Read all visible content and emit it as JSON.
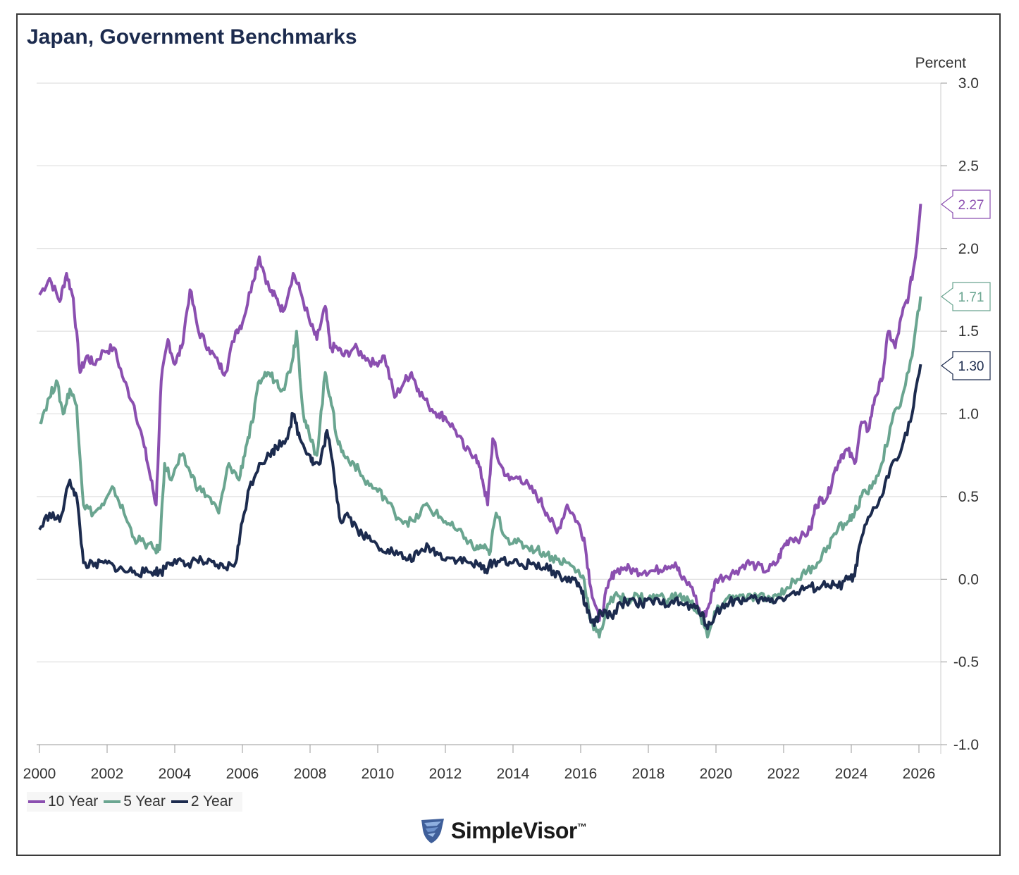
{
  "chart_data": {
    "type": "line",
    "title": "Japan, Government Benchmarks",
    "ylabel": "Percent",
    "xlim": [
      2000,
      2026.3
    ],
    "ylim": [
      -1.0,
      3.0
    ],
    "x_ticks": [
      "2000",
      "2002",
      "2004",
      "2006",
      "2008",
      "2010",
      "2012",
      "2014",
      "2016",
      "2018",
      "2020",
      "2022",
      "2024",
      "2026"
    ],
    "y_ticks": [
      "3.0",
      "2.5",
      "2.0",
      "1.5",
      "1.0",
      "0.5",
      "0.0",
      "-0.5",
      "-1.0"
    ],
    "grid": true,
    "y_axis_side": "right",
    "legend_position": "bottom-left",
    "series": [
      {
        "name": "10 Year",
        "color": "#8b4fb0",
        "last_value": "2.27",
        "x": [
          2000.0,
          2000.3,
          2000.6,
          2000.8,
          2001.0,
          2001.2,
          2001.4,
          2001.6,
          2001.9,
          2002.2,
          2002.5,
          2002.8,
          2003.1,
          2003.3,
          2003.45,
          2003.6,
          2003.8,
          2004.0,
          2004.2,
          2004.45,
          2004.7,
          2005.0,
          2005.3,
          2005.5,
          2005.8,
          2006.0,
          2006.3,
          2006.5,
          2006.8,
          2007.0,
          2007.2,
          2007.5,
          2007.7,
          2008.0,
          2008.2,
          2008.45,
          2008.6,
          2008.8,
          2009.0,
          2009.3,
          2009.6,
          2009.9,
          2010.2,
          2010.5,
          2010.8,
          2011.0,
          2011.2,
          2011.5,
          2011.8,
          2012.0,
          2012.3,
          2012.6,
          2012.9,
          2013.1,
          2013.25,
          2013.4,
          2013.6,
          2013.9,
          2014.2,
          2014.5,
          2014.8,
          2015.0,
          2015.3,
          2015.6,
          2015.9,
          2016.1,
          2016.3,
          2016.55,
          2016.8,
          2017.0,
          2017.3,
          2017.6,
          2017.9,
          2018.2,
          2018.5,
          2018.8,
          2019.0,
          2019.3,
          2019.6,
          2019.8,
          2020.0,
          2020.3,
          2020.6,
          2020.9,
          2021.2,
          2021.5,
          2021.8,
          2022.0,
          2022.2,
          2022.5,
          2022.8,
          2022.95,
          2023.1,
          2023.3,
          2023.5,
          2023.7,
          2023.9,
          2024.1,
          2024.3,
          2024.5,
          2024.7,
          2024.9,
          2025.1,
          2025.3,
          2025.5,
          2025.7,
          2025.9,
          2026.05
        ],
        "values": [
          1.72,
          1.82,
          1.68,
          1.85,
          1.7,
          1.25,
          1.35,
          1.3,
          1.38,
          1.4,
          1.2,
          1.05,
          0.8,
          0.6,
          0.45,
          1.2,
          1.45,
          1.3,
          1.4,
          1.75,
          1.5,
          1.4,
          1.3,
          1.25,
          1.5,
          1.55,
          1.8,
          1.95,
          1.75,
          1.7,
          1.62,
          1.85,
          1.75,
          1.55,
          1.45,
          1.65,
          1.4,
          1.4,
          1.35,
          1.4,
          1.35,
          1.3,
          1.35,
          1.1,
          1.2,
          1.25,
          1.15,
          1.05,
          1.0,
          0.98,
          0.9,
          0.78,
          0.75,
          0.6,
          0.45,
          0.85,
          0.7,
          0.6,
          0.62,
          0.55,
          0.48,
          0.4,
          0.28,
          0.45,
          0.35,
          0.25,
          -0.05,
          -0.25,
          -0.05,
          0.05,
          0.07,
          0.05,
          0.05,
          0.05,
          0.08,
          0.1,
          0.0,
          -0.05,
          -0.25,
          -0.15,
          0.0,
          0.02,
          0.05,
          0.1,
          0.08,
          0.05,
          0.1,
          0.2,
          0.25,
          0.25,
          0.3,
          0.45,
          0.48,
          0.5,
          0.65,
          0.75,
          0.78,
          0.7,
          0.95,
          0.9,
          1.1,
          1.2,
          1.5,
          1.4,
          1.6,
          1.72,
          1.95,
          2.27
        ]
      },
      {
        "name": "5 Year",
        "color": "#6aa590",
        "last_value": "1.71",
        "x": [
          2000.0,
          2000.3,
          2000.5,
          2000.7,
          2000.9,
          2001.1,
          2001.3,
          2001.6,
          2001.9,
          2002.2,
          2002.5,
          2002.8,
          2003.1,
          2003.4,
          2003.55,
          2003.7,
          2003.9,
          2004.2,
          2004.45,
          2004.7,
          2005.0,
          2005.3,
          2005.6,
          2005.9,
          2006.1,
          2006.3,
          2006.5,
          2006.75,
          2007.0,
          2007.2,
          2007.45,
          2007.6,
          2007.8,
          2008.0,
          2008.2,
          2008.45,
          2008.6,
          2008.8,
          2009.0,
          2009.3,
          2009.6,
          2009.9,
          2010.2,
          2010.5,
          2010.8,
          2011.1,
          2011.4,
          2011.7,
          2012.0,
          2012.3,
          2012.6,
          2012.9,
          2013.1,
          2013.3,
          2013.5,
          2013.8,
          2014.1,
          2014.4,
          2014.7,
          2015.0,
          2015.3,
          2015.6,
          2015.9,
          2016.1,
          2016.3,
          2016.55,
          2016.8,
          2017.1,
          2017.4,
          2017.7,
          2018.0,
          2018.3,
          2018.6,
          2018.9,
          2019.2,
          2019.5,
          2019.75,
          2020.0,
          2020.3,
          2020.6,
          2020.9,
          2021.2,
          2021.5,
          2021.8,
          2022.1,
          2022.4,
          2022.7,
          2023.0,
          2023.3,
          2023.6,
          2023.9,
          2024.1,
          2024.3,
          2024.6,
          2024.9,
          2025.2,
          2025.5,
          2025.8,
          2026.05
        ],
        "values": [
          0.95,
          1.1,
          1.2,
          1.0,
          1.15,
          1.05,
          0.45,
          0.4,
          0.45,
          0.55,
          0.4,
          0.25,
          0.22,
          0.18,
          0.18,
          0.7,
          0.6,
          0.75,
          0.65,
          0.55,
          0.5,
          0.4,
          0.7,
          0.6,
          0.8,
          0.95,
          1.2,
          1.25,
          1.2,
          1.15,
          1.3,
          1.5,
          1.0,
          0.85,
          0.75,
          1.25,
          1.1,
          0.85,
          0.75,
          0.7,
          0.6,
          0.55,
          0.5,
          0.4,
          0.35,
          0.35,
          0.45,
          0.4,
          0.35,
          0.3,
          0.25,
          0.18,
          0.2,
          0.15,
          0.4,
          0.25,
          0.22,
          0.2,
          0.18,
          0.15,
          0.12,
          0.1,
          0.05,
          0.0,
          -0.25,
          -0.35,
          -0.15,
          -0.1,
          -0.12,
          -0.1,
          -0.12,
          -0.1,
          -0.12,
          -0.1,
          -0.13,
          -0.2,
          -0.35,
          -0.2,
          -0.12,
          -0.1,
          -0.12,
          -0.1,
          -0.12,
          -0.1,
          -0.05,
          0.0,
          0.05,
          0.1,
          0.2,
          0.3,
          0.35,
          0.4,
          0.5,
          0.55,
          0.7,
          0.95,
          1.1,
          1.35,
          1.71
        ]
      },
      {
        "name": "2 Year",
        "color": "#1c2b4e",
        "last_value": "1.30",
        "x": [
          2000.0,
          2000.3,
          2000.6,
          2000.9,
          2001.1,
          2001.3,
          2001.6,
          2001.9,
          2002.2,
          2002.5,
          2002.8,
          2003.1,
          2003.4,
          2003.6,
          2003.8,
          2004.0,
          2004.3,
          2004.6,
          2004.9,
          2005.2,
          2005.5,
          2005.8,
          2006.0,
          2006.2,
          2006.5,
          2006.8,
          2007.0,
          2007.3,
          2007.5,
          2007.7,
          2008.0,
          2008.1,
          2008.3,
          2008.5,
          2008.7,
          2008.9,
          2009.1,
          2009.4,
          2009.7,
          2010.0,
          2010.3,
          2010.6,
          2010.9,
          2011.2,
          2011.5,
          2011.8,
          2012.1,
          2012.4,
          2012.7,
          2013.0,
          2013.2,
          2013.4,
          2013.7,
          2014.0,
          2014.3,
          2014.6,
          2014.9,
          2015.2,
          2015.5,
          2015.8,
          2016.0,
          2016.2,
          2016.4,
          2016.6,
          2016.9,
          2017.2,
          2017.5,
          2017.8,
          2018.1,
          2018.4,
          2018.7,
          2019.0,
          2019.3,
          2019.6,
          2019.75,
          2020.0,
          2020.3,
          2020.6,
          2020.9,
          2021.2,
          2021.5,
          2021.8,
          2022.1,
          2022.4,
          2022.7,
          2023.0,
          2023.3,
          2023.6,
          2023.9,
          2024.1,
          2024.3,
          2024.6,
          2024.9,
          2025.2,
          2025.5,
          2025.8,
          2026.05
        ],
        "values": [
          0.3,
          0.4,
          0.35,
          0.6,
          0.5,
          0.1,
          0.08,
          0.1,
          0.08,
          0.05,
          0.05,
          0.04,
          0.05,
          0.04,
          0.1,
          0.12,
          0.08,
          0.12,
          0.1,
          0.08,
          0.07,
          0.1,
          0.35,
          0.55,
          0.7,
          0.75,
          0.8,
          0.85,
          1.0,
          0.85,
          0.75,
          0.7,
          0.7,
          0.9,
          0.65,
          0.35,
          0.4,
          0.3,
          0.25,
          0.2,
          0.18,
          0.15,
          0.12,
          0.15,
          0.2,
          0.15,
          0.13,
          0.12,
          0.1,
          0.08,
          0.06,
          0.1,
          0.12,
          0.1,
          0.08,
          0.1,
          0.07,
          0.05,
          0.0,
          0.0,
          -0.05,
          -0.2,
          -0.28,
          -0.2,
          -0.22,
          -0.15,
          -0.12,
          -0.15,
          -0.13,
          -0.15,
          -0.13,
          -0.15,
          -0.17,
          -0.2,
          -0.3,
          -0.2,
          -0.15,
          -0.12,
          -0.13,
          -0.12,
          -0.13,
          -0.12,
          -0.1,
          -0.08,
          -0.05,
          -0.05,
          -0.03,
          -0.05,
          0.0,
          0.02,
          0.25,
          0.4,
          0.5,
          0.7,
          0.8,
          1.0,
          1.3
        ]
      }
    ]
  },
  "legend": [
    {
      "label": "10 Year",
      "color": "#8b4fb0"
    },
    {
      "label": "5 Year",
      "color": "#6aa590"
    },
    {
      "label": "2 Year",
      "color": "#1c2b4e"
    }
  ],
  "brand": {
    "name": "SimpleVisor",
    "mark": "™",
    "logo_icon": "shield-icon"
  }
}
